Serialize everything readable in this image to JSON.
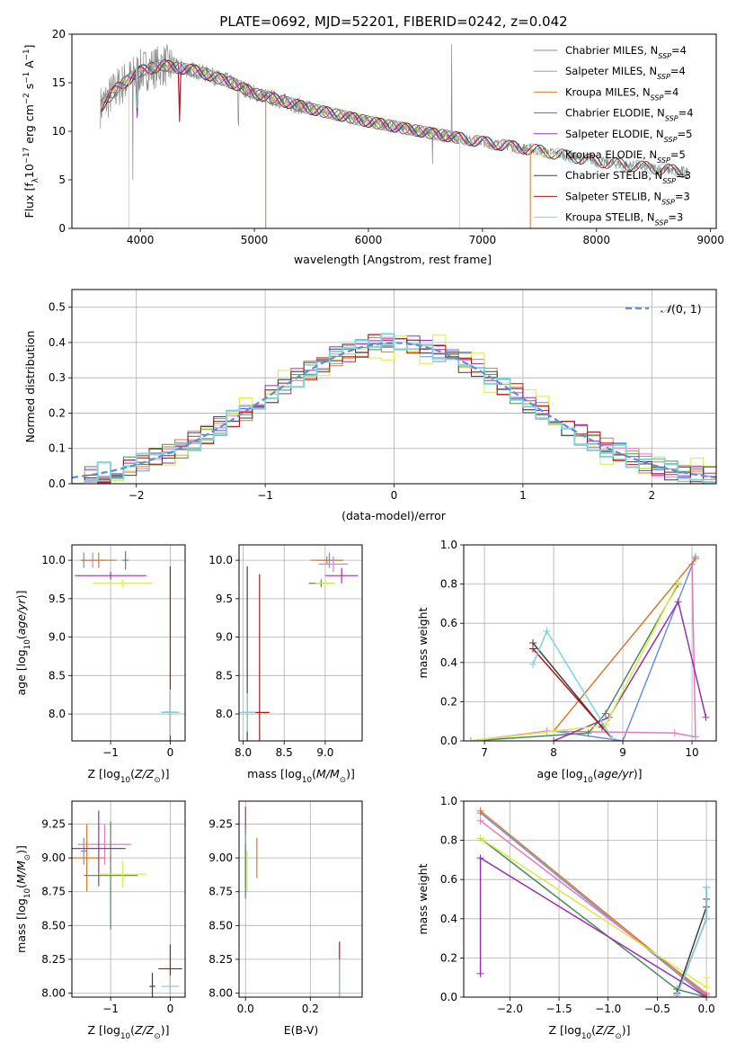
{
  "title": "PLATE=0692, MJD=52201, FIBERID=0242, z=0.042",
  "legend_labels": [
    "Chabrier MILES, N_SSP=4",
    "Salpeter MILES, N_SSP=4",
    "Kroupa MILES, N_SSP=4",
    "Chabrier ELODIE, N_SSP=4",
    "Salpeter ELODIE, N_SSP=5",
    "Kroupa ELODIE, N_SSP=5",
    "Chabrier STELIB, N_SSP=3",
    "Salpeter STELIB, N_SSP=3",
    "Kroupa STELIB, N_SSP=3"
  ],
  "colors": [
    "#6a8fe0",
    "#e27cc0",
    "#d9782b",
    "#4f8a5c",
    "#9531b0",
    "#d6ec4a",
    "#404040",
    "#b01515",
    "#7fd3da"
  ],
  "chart_data": [
    {
      "type": "line",
      "title": "PLATE=0692, MJD=52201, FIBERID=0242, z=0.042",
      "xlabel": "wavelength [Angstrom, rest frame]",
      "ylabel": "Flux [f_λ 10^-17 erg cm^-2 s^-1 A^-1]",
      "xlim": [
        3400,
        9050
      ],
      "ylim": [
        0,
        20
      ],
      "xticks": [
        4000,
        5000,
        6000,
        7000,
        8000,
        9000
      ],
      "yticks": [
        0,
        5,
        10,
        15,
        20
      ],
      "observed_spectrum_color": "#8c8c8c",
      "model_continuum": {
        "x": [
          3650,
          3800,
          4000,
          4200,
          4500,
          4800,
          5000,
          5500,
          6000,
          6500,
          7000,
          7500,
          8000,
          8500,
          8800
        ],
        "y": [
          12.5,
          14.5,
          16.2,
          16.8,
          16.2,
          15.0,
          13.9,
          12.3,
          11.0,
          9.9,
          8.9,
          8.0,
          6.9,
          6.2,
          5.8
        ]
      },
      "legend_position": "upper right"
    },
    {
      "type": "histogram",
      "xlabel": "(data-model)/error",
      "ylabel": "Normed distribution",
      "xlim": [
        -2.5,
        2.5
      ],
      "ylim": [
        0,
        0.55
      ],
      "xticks": [
        -2,
        -1,
        0,
        1,
        2
      ],
      "yticks": [
        0.0,
        0.1,
        0.2,
        0.3,
        0.4,
        0.5
      ],
      "bin_width": 0.1,
      "reference_curve": "N(0,1)",
      "reference_color": "#5b8fd9",
      "legend_position": "upper right"
    },
    {
      "type": "scatter",
      "xlabel": "Z [log10(Z/Z⊙)]",
      "ylabel": "age [log10(age/yr)]",
      "xlim": [
        -1.65,
        0.25
      ],
      "ylim": [
        7.65,
        10.2
      ],
      "xticks": [
        -1,
        0
      ],
      "yticks": [
        8.0,
        8.5,
        9.0,
        9.5,
        10.0
      ]
    },
    {
      "type": "scatter",
      "xlabel": "mass [log10(M/M⊙)]",
      "xlim": [
        7.95,
        9.45
      ],
      "ylim": [
        7.65,
        10.2
      ],
      "xticks": [
        8.0,
        8.5,
        9.0
      ],
      "yticks": [
        8.0,
        8.5,
        9.0,
        9.5,
        10.0
      ]
    },
    {
      "type": "line",
      "xlabel": "age [log10(age/yr)]",
      "ylabel": "mass weight",
      "xlim": [
        6.7,
        10.35
      ],
      "ylim": [
        0,
        1.0
      ],
      "xticks": [
        7,
        8,
        9,
        10
      ],
      "yticks": [
        0.0,
        0.2,
        0.4,
        0.6,
        0.8,
        1.0
      ],
      "series": [
        {
          "x": [
            6.8,
            8.0,
            9.0,
            10.05
          ],
          "y": [
            0.0,
            0.05,
            0.0,
            0.94
          ]
        },
        {
          "x": [
            6.8,
            7.9,
            9.75,
            10.05,
            10.0
          ],
          "y": [
            0.0,
            0.05,
            0.04,
            0.02,
            0.9
          ]
        },
        {
          "x": [
            6.8,
            8.0,
            10.05
          ],
          "y": [
            0.0,
            0.05,
            0.93
          ]
        },
        {
          "x": [
            6.8,
            8.5,
            8.75,
            9.8
          ],
          "y": [
            0.0,
            0.04,
            0.14,
            0.8
          ]
        },
        {
          "x": [
            8.0,
            8.8,
            9.8,
            10.2
          ],
          "y": [
            0.0,
            0.12,
            0.71,
            0.12
          ]
        },
        {
          "x": [
            6.8,
            8.0,
            8.75,
            9.8
          ],
          "y": [
            0.0,
            0.05,
            0.08,
            0.81
          ]
        },
        {
          "x": [
            7.7,
            8.7
          ],
          "y": [
            0.5,
            0.07
          ]
        },
        {
          "x": [
            7.7,
            8.85
          ],
          "y": [
            0.47,
            0.01
          ]
        },
        {
          "x": [
            7.7,
            7.9,
            8.85
          ],
          "y": [
            0.39,
            0.56,
            0.01
          ]
        }
      ]
    },
    {
      "type": "scatter",
      "xlabel": "Z [log10(Z/Z⊙)]",
      "ylabel": "mass [log10(M/M⊙)]",
      "xlim": [
        -1.65,
        0.25
      ],
      "ylim": [
        7.97,
        9.42
      ],
      "xticks": [
        -1,
        0
      ],
      "yticks": [
        8.0,
        8.25,
        8.5,
        8.75,
        9.0,
        9.25
      ]
    },
    {
      "type": "scatter",
      "xlabel": "E(B-V)",
      "xlim": [
        -0.02,
        0.36
      ],
      "ylim": [
        7.97,
        9.42
      ],
      "xticks": [
        0.0,
        0.2
      ],
      "yticks": [
        8.0,
        8.25,
        8.5,
        8.75,
        9.0,
        9.25
      ]
    },
    {
      "type": "line",
      "xlabel": "Z [log10(Z/Z⊙)]",
      "ylabel": "mass weight",
      "xlim": [
        -2.47,
        0.1
      ],
      "ylim": [
        0,
        1.0
      ],
      "xticks": [
        -2.0,
        -1.5,
        -1.0,
        -0.5,
        0.0
      ],
      "yticks": [
        0.0,
        0.2,
        0.4,
        0.6,
        0.8,
        1.0
      ],
      "series": [
        {
          "x": [
            -2.3,
            0.0
          ],
          "y": [
            0.94,
            0.0
          ]
        },
        {
          "x": [
            -2.3,
            0.0
          ],
          "y": [
            0.9,
            0.02
          ]
        },
        {
          "x": [
            -2.3,
            0.0
          ],
          "y": [
            0.95,
            0.01
          ]
        },
        {
          "x": [
            -2.3,
            -0.3,
            0.0
          ],
          "y": [
            0.81,
            0.04,
            0.0
          ]
        },
        {
          "x": [
            -2.3,
            -2.3,
            0.0
          ],
          "y": [
            0.12,
            0.71,
            0.0
          ]
        },
        {
          "x": [
            -2.3,
            0.0,
            0.0
          ],
          "y": [
            0.81,
            0.05,
            0.1
          ]
        },
        {
          "x": [
            -0.3,
            0.0,
            0.0
          ],
          "y": [
            0.02,
            0.46,
            0.56
          ]
        },
        {
          "x": [
            -0.3,
            0.0,
            0.0
          ],
          "y": [
            0.01,
            0.4,
            0.5
          ]
        },
        {
          "x": [
            -0.3,
            0.0,
            0.0
          ],
          "y": [
            0.01,
            0.4,
            0.56
          ]
        }
      ]
    }
  ]
}
